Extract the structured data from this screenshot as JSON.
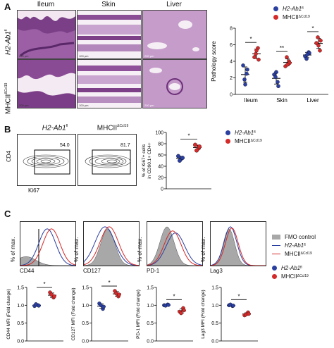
{
  "panel_a": {
    "letter": "A",
    "tissues": [
      "Ileum",
      "Skin",
      "Liver"
    ],
    "row_labels": [
      {
        "main": "H2-Ab1",
        "sup": "fl"
      },
      {
        "main": "MHCII",
        "sup": "ΔCcl19"
      }
    ],
    "scale_labels": [
      [
        "200 µm",
        "100 µm",
        "200 µm"
      ],
      [
        "200 µm",
        "100 µm",
        "200 µm"
      ]
    ],
    "legend": [
      {
        "label": "H2-Ab1",
        "sup": "fl",
        "color": "#2b3fa0"
      },
      {
        "label": "MHCII",
        "sup": "ΔCcl19",
        "color": "#d42a2a"
      }
    ]
  },
  "panel_b": {
    "letter": "B",
    "titles": [
      {
        "main": "H2-Ab1",
        "sup": "fl",
        "italic": true
      },
      {
        "main": "MHCII",
        "sup": "ΔCcl19",
        "italic": false
      }
    ],
    "gate_values": [
      "54.0",
      "81.7"
    ],
    "axis_y": "CD4",
    "axis_x": "Ki67",
    "legend": [
      {
        "label": "H2-Ab1",
        "sup": "fl",
        "color": "#2b3fa0"
      },
      {
        "label": "MHCII",
        "sup": "ΔCcl19",
        "color": "#d42a2a"
      }
    ]
  },
  "panel_c": {
    "letter": "C",
    "hist_ylabel": "% of max.",
    "markers": [
      "CD44",
      "CD127",
      "PD-1",
      "Lag3"
    ],
    "legend_hist": [
      {
        "label": "FMO control",
        "kind": "fill",
        "color": "#a8a8a8"
      },
      {
        "label": "H2-Ab1",
        "sup": "fl",
        "kind": "line",
        "color": "#2b3fa0"
      },
      {
        "label": "MHCII",
        "sup": "ΔCcl19",
        "kind": "line",
        "color": "#d42a2a"
      }
    ],
    "legend_dots": [
      {
        "label": "H2-Ab1",
        "sup": "fl",
        "color": "#2b3fa0"
      },
      {
        "label": "MHCII",
        "sup": "ΔCcl19",
        "color": "#d42a2a"
      }
    ]
  },
  "chart_data": [
    {
      "type": "scatter",
      "id": "pathology",
      "ylabel": "Pathology score",
      "categories": [
        "Ileum",
        "Skin",
        "Liver"
      ],
      "ylim": [
        0,
        8
      ],
      "yticks": [
        0,
        2,
        4,
        6,
        8
      ],
      "significance": [
        "*",
        "**",
        "*"
      ],
      "series": [
        {
          "name": "H2-Ab1fl",
          "color": "#2b3fa0",
          "values": [
            [
              3.5,
              2.5,
              1.8,
              3.0,
              1.2
            ],
            [
              2.4,
              1.5,
              2.1,
              1.0,
              2.7
            ],
            [
              4.6,
              5.1,
              4.3,
              5.0,
              4.8
            ]
          ]
        },
        {
          "name": "MHCIIΔCcl19",
          "color": "#d42a2a",
          "values": [
            [
              4.5,
              5.6,
              4.9,
              4.2,
              5.3
            ],
            [
              3.4,
              4.0,
              4.5,
              3.8,
              3.6
            ],
            [
              6.2,
              5.3,
              6.9,
              6.5,
              5.9
            ]
          ]
        }
      ]
    },
    {
      "type": "scatter",
      "id": "ki67",
      "ylabel": "% of Ki67+ cells in CD90.1+ CD4+",
      "ylim": [
        0,
        100
      ],
      "yticks": [
        0,
        20,
        40,
        60,
        80,
        100
      ],
      "significance": "*",
      "series": [
        {
          "name": "H2-Ab1fl",
          "color": "#2b3fa0",
          "values": [
            58,
            54,
            50,
            55
          ]
        },
        {
          "name": "MHCIIΔCcl19",
          "color": "#d42a2a",
          "values": [
            78,
            72,
            68,
            75
          ]
        }
      ]
    },
    {
      "type": "scatter",
      "id": "cd44",
      "ylabel": "CD44 MFI (Fold change)",
      "ylim": [
        0.0,
        1.5
      ],
      "yticks": [
        0.0,
        0.5,
        1.0,
        1.5
      ],
      "significance": "*",
      "series": [
        {
          "name": "H2-Ab1fl",
          "color": "#2b3fa0",
          "values": [
            0.98,
            1.0,
            1.03,
            0.99
          ]
        },
        {
          "name": "MHCIIΔCcl19",
          "color": "#d42a2a",
          "values": [
            1.36,
            1.22,
            1.3,
            1.25
          ]
        }
      ]
    },
    {
      "type": "scatter",
      "id": "cd127",
      "ylabel": "CD127 MFI (Fold change)",
      "ylim": [
        0.0,
        1.5
      ],
      "yticks": [
        0.0,
        0.5,
        1.0,
        1.5
      ],
      "significance": "*",
      "series": [
        {
          "name": "H2-Ab1fl",
          "color": "#2b3fa0",
          "values": [
            1.05,
            0.9,
            1.0,
            0.96
          ]
        },
        {
          "name": "MHCIIΔCcl19",
          "color": "#d42a2a",
          "values": [
            1.4,
            1.25,
            1.33,
            1.3
          ]
        }
      ]
    },
    {
      "type": "scatter",
      "id": "pd1",
      "ylabel": "PD-1 MFI (Fold change)",
      "ylim": [
        0.0,
        1.5
      ],
      "yticks": [
        0.0,
        0.5,
        1.0,
        1.5
      ],
      "significance": "*",
      "series": [
        {
          "name": "H2-Ab1fl",
          "color": "#2b3fa0",
          "values": [
            1.0,
            1.02,
            0.99,
            1.01
          ]
        },
        {
          "name": "MHCIIΔCcl19",
          "color": "#d42a2a",
          "values": [
            0.82,
            0.92,
            0.78,
            0.86
          ]
        }
      ]
    },
    {
      "type": "scatter",
      "id": "lag3",
      "ylabel": "Lag3 MFI (Fold change)",
      "ylim": [
        0.0,
        1.5
      ],
      "yticks": [
        0.0,
        0.5,
        1.0,
        1.5
      ],
      "significance": "*",
      "series": [
        {
          "name": "H2-Ab1fl",
          "color": "#2b3fa0",
          "values": [
            1.0,
            0.98,
            1.02,
            0.99
          ]
        },
        {
          "name": "MHCIIΔCcl19",
          "color": "#d42a2a",
          "values": [
            0.72,
            0.8,
            0.74,
            0.76
          ]
        }
      ]
    }
  ]
}
